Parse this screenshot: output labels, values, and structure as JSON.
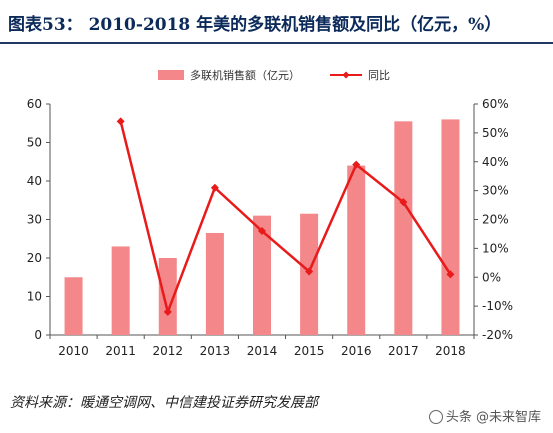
{
  "figure": {
    "title": "图表53：  2010-2018 年美的多联机销售额及同比（亿元，%）",
    "source": "资料来源：暖通空调网、中信建投证券研究发展部",
    "watermark": "头条 @未来智库"
  },
  "chart_data": {
    "type": "bar",
    "categories": [
      "2010",
      "2011",
      "2012",
      "2013",
      "2014",
      "2015",
      "2016",
      "2017",
      "2018"
    ],
    "series": [
      {
        "name": "多联机销售额（亿元）",
        "type": "bar",
        "axis": "left",
        "values": [
          15,
          23,
          20,
          26.5,
          31,
          31.5,
          44,
          55.5,
          56
        ],
        "color": "#f4878a"
      },
      {
        "name": "同比",
        "type": "line",
        "axis": "right",
        "values": [
          null,
          0.54,
          -0.12,
          0.31,
          0.16,
          0.02,
          0.39,
          0.26,
          0.01
        ],
        "color": "#e81a1a"
      }
    ],
    "y_left": {
      "min": 0,
      "max": 60,
      "ticks": [
        0,
        10,
        20,
        30,
        40,
        50,
        60
      ]
    },
    "y_right": {
      "min": -0.2,
      "max": 0.6,
      "ticks": [
        -0.2,
        -0.1,
        0,
        0.1,
        0.2,
        0.3,
        0.4,
        0.5,
        0.6
      ],
      "tick_labels": [
        "-20%",
        "-10%",
        "0%",
        "10%",
        "20%",
        "30%",
        "40%",
        "50%",
        "60%"
      ]
    },
    "legend_position": "top",
    "grid": false
  }
}
